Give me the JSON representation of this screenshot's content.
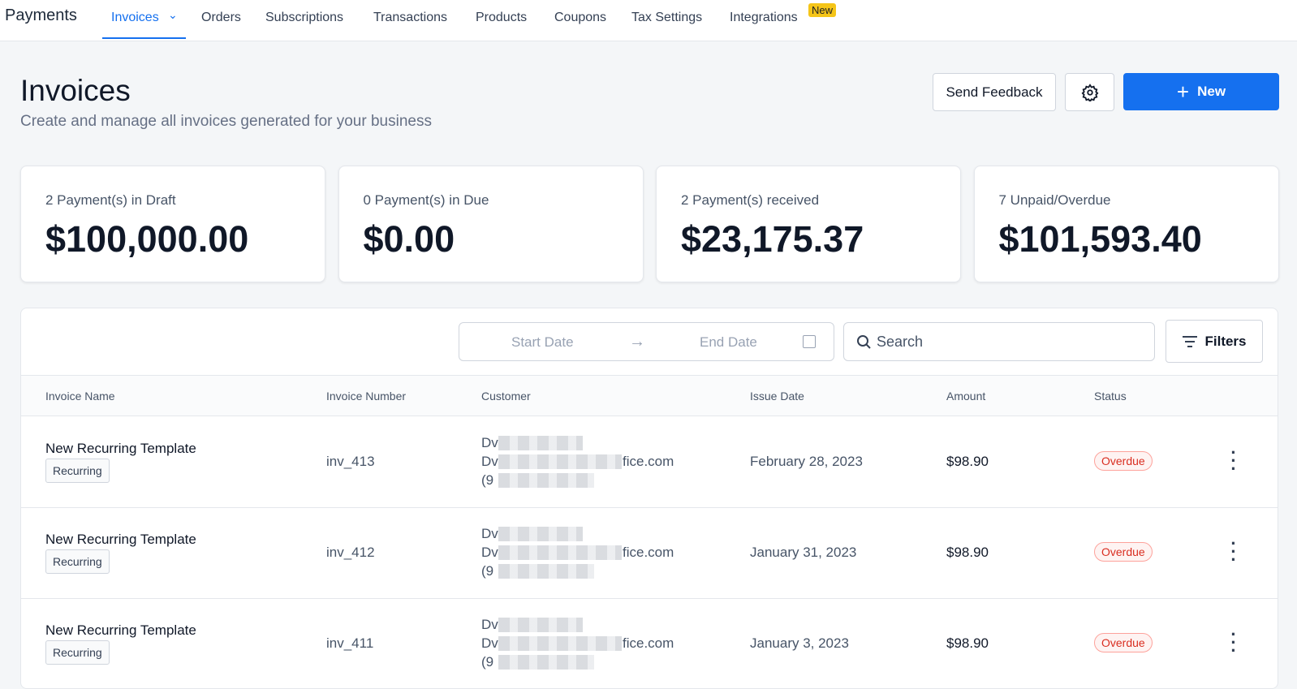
{
  "nav": {
    "brand": "Payments",
    "tabs": [
      "Invoices",
      "Orders",
      "Subscriptions",
      "Transactions",
      "Products",
      "Coupons",
      "Tax Settings",
      "Integrations"
    ],
    "badge": "New"
  },
  "header": {
    "title": "Invoices",
    "subtitle": "Create and manage all invoices generated for your business",
    "feedback": "Send Feedback",
    "new": "New"
  },
  "stats": [
    {
      "label": "2 Payment(s) in Draft",
      "value": "$100,000.00"
    },
    {
      "label": "0 Payment(s) in Due",
      "value": "$0.00"
    },
    {
      "label": "2 Payment(s) received",
      "value": "$23,175.37"
    },
    {
      "label": "7 Unpaid/Overdue",
      "value": "$101,593.40"
    }
  ],
  "toolbar": {
    "start": "Start Date",
    "end": "End Date",
    "search": "Search",
    "filters": "Filters"
  },
  "table": {
    "columns": [
      "Invoice Name",
      "Invoice Number",
      "Customer",
      "Issue Date",
      "Amount",
      "Status"
    ],
    "rows": [
      {
        "name": "New Recurring Template",
        "tag": "Recurring",
        "number": "inv_413",
        "customer": [
          "Dv",
          "Dv",
          "fice.com",
          "(9"
        ],
        "issue_date": "February 28, 2023",
        "amount": "$98.90",
        "status": "Overdue"
      },
      {
        "name": "New Recurring Template",
        "tag": "Recurring",
        "number": "inv_412",
        "customer": [
          "Dv",
          "Dv",
          "fice.com",
          "(9"
        ],
        "issue_date": "January 31, 2023",
        "amount": "$98.90",
        "status": "Overdue"
      },
      {
        "name": "New Recurring Template",
        "tag": "Recurring",
        "number": "inv_411",
        "customer": [
          "Dv",
          "Dv",
          "fice.com",
          "(9"
        ],
        "issue_date": "January 3, 2023",
        "amount": "$98.90",
        "status": "Overdue"
      }
    ]
  }
}
